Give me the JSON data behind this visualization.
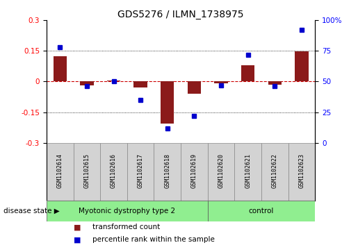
{
  "title": "GDS5276 / ILMN_1738975",
  "samples": [
    "GSM1102614",
    "GSM1102615",
    "GSM1102616",
    "GSM1102617",
    "GSM1102618",
    "GSM1102619",
    "GSM1102620",
    "GSM1102621",
    "GSM1102622",
    "GSM1102623"
  ],
  "red_values": [
    0.125,
    -0.02,
    0.005,
    -0.03,
    -0.205,
    -0.06,
    -0.01,
    0.08,
    -0.015,
    0.148
  ],
  "blue_values": [
    78,
    46,
    50,
    35,
    12,
    22,
    47,
    72,
    46,
    92
  ],
  "group1_count": 6,
  "group2_count": 4,
  "group1_label": "Myotonic dystrophy type 2",
  "group2_label": "control",
  "group_color": "#90EE90",
  "label_box_color": "#D3D3D3",
  "ylim_left": [
    -0.3,
    0.3
  ],
  "ylim_right": [
    0,
    100
  ],
  "yticks_left": [
    -0.3,
    -0.15,
    0.0,
    0.15,
    0.3
  ],
  "yticks_right": [
    0,
    25,
    50,
    75,
    100
  ],
  "red_color": "#8B1A1A",
  "blue_color": "#0000CD",
  "dotted_line_color": "#000000",
  "zero_line_color": "#CC0000",
  "bar_width": 0.5,
  "marker_size": 5,
  "legend_red_label": "transformed count",
  "legend_blue_label": "percentile rank within the sample",
  "disease_state_label": "disease state"
}
